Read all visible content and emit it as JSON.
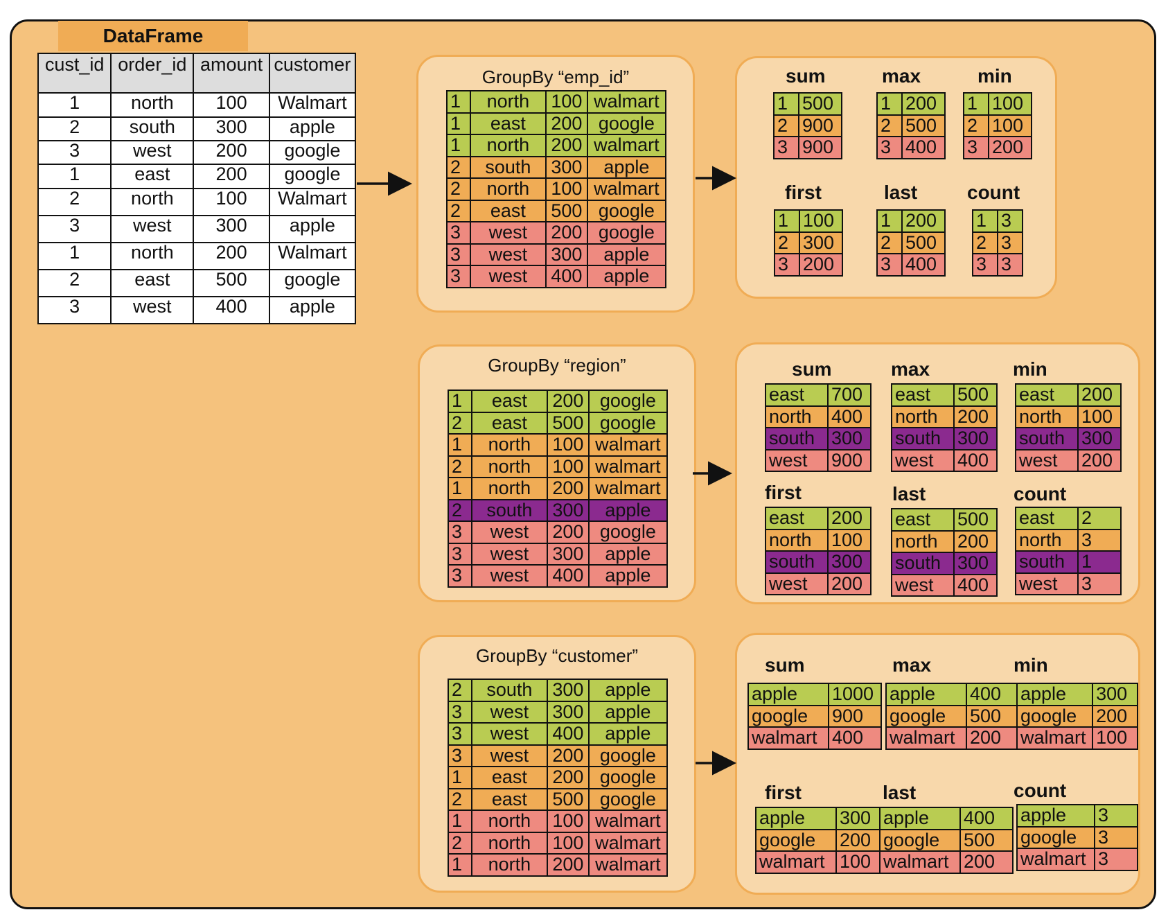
{
  "colors": {
    "canvas_fill": "#f5c27d",
    "panel_fill": "#f8d8ab",
    "header_tab": "#f0ac55",
    "group_green": "#b9cc52",
    "group_orange": "#f0ac55",
    "group_red": "#ee8a80",
    "group_purple": "#8b2a8f"
  },
  "dataframe": {
    "title": "DataFrame",
    "columns": [
      "cust_id",
      "order_id",
      "amount",
      "customer"
    ],
    "rows": [
      [
        "1",
        "north",
        "100",
        "Walmart"
      ],
      [
        "2",
        "south",
        "300",
        "apple"
      ],
      [
        "3",
        "west",
        "200",
        "google"
      ],
      [
        "1",
        "east",
        "200",
        "google"
      ],
      [
        "2",
        "north",
        "100",
        "Walmart"
      ],
      [
        "3",
        "west",
        "300",
        "apple"
      ],
      [
        "1",
        "north",
        "200",
        "Walmart"
      ],
      [
        "2",
        "east",
        "500",
        "google"
      ],
      [
        "3",
        "west",
        "400",
        "apple"
      ]
    ]
  },
  "groupbys": [
    {
      "title": "GroupBy “emp_id”",
      "rows": [
        {
          "c": "g",
          "v": [
            "1",
            "north",
            "100",
            "walmart"
          ]
        },
        {
          "c": "g",
          "v": [
            "1",
            "east",
            "200",
            "google"
          ]
        },
        {
          "c": "g",
          "v": [
            "1",
            "north",
            "200",
            "walmart"
          ]
        },
        {
          "c": "o",
          "v": [
            "2",
            "south",
            "300",
            "apple"
          ]
        },
        {
          "c": "o",
          "v": [
            "2",
            "north",
            "100",
            "walmart"
          ]
        },
        {
          "c": "o",
          "v": [
            "2",
            "east",
            "500",
            "google"
          ]
        },
        {
          "c": "r",
          "v": [
            "3",
            "west",
            "200",
            "google"
          ]
        },
        {
          "c": "r",
          "v": [
            "3",
            "west",
            "300",
            "apple"
          ]
        },
        {
          "c": "r",
          "v": [
            "3",
            "west",
            "400",
            "apple"
          ]
        }
      ],
      "aggs": [
        {
          "name": "sum",
          "rows": [
            [
              "1",
              "500"
            ],
            [
              "2",
              "900"
            ],
            [
              "3",
              "900"
            ]
          ]
        },
        {
          "name": "max",
          "rows": [
            [
              "1",
              "200"
            ],
            [
              "2",
              "500"
            ],
            [
              "3",
              "400"
            ]
          ]
        },
        {
          "name": "min",
          "rows": [
            [
              "1",
              "100"
            ],
            [
              "2",
              "100"
            ],
            [
              "3",
              "200"
            ]
          ]
        },
        {
          "name": "first",
          "rows": [
            [
              "1",
              "100"
            ],
            [
              "2",
              "300"
            ],
            [
              "3",
              "200"
            ]
          ]
        },
        {
          "name": "last",
          "rows": [
            [
              "1",
              "200"
            ],
            [
              "2",
              "500"
            ],
            [
              "3",
              "400"
            ]
          ]
        },
        {
          "name": "count",
          "rows": [
            [
              "1",
              "3"
            ],
            [
              "2",
              "3"
            ],
            [
              "3",
              "3"
            ]
          ]
        }
      ]
    },
    {
      "title": "GroupBy “region”",
      "rows": [
        {
          "c": "g",
          "v": [
            "1",
            "east",
            "200",
            "google"
          ]
        },
        {
          "c": "g",
          "v": [
            "2",
            "east",
            "500",
            "google"
          ]
        },
        {
          "c": "o",
          "v": [
            "1",
            "north",
            "100",
            "walmart"
          ]
        },
        {
          "c": "o",
          "v": [
            "2",
            "north",
            "100",
            "walmart"
          ]
        },
        {
          "c": "o",
          "v": [
            "1",
            "north",
            "200",
            "walmart"
          ]
        },
        {
          "c": "p",
          "v": [
            "2",
            "south",
            "300",
            "apple"
          ]
        },
        {
          "c": "r",
          "v": [
            "3",
            "west",
            "200",
            "google"
          ]
        },
        {
          "c": "r",
          "v": [
            "3",
            "west",
            "300",
            "apple"
          ]
        },
        {
          "c": "r",
          "v": [
            "3",
            "west",
            "400",
            "apple"
          ]
        }
      ],
      "aggs": [
        {
          "name": "sum",
          "rows": [
            [
              "east",
              "700"
            ],
            [
              "north",
              "400"
            ],
            [
              "south",
              "300"
            ],
            [
              "west",
              "900"
            ]
          ]
        },
        {
          "name": "max",
          "rows": [
            [
              "east",
              "500"
            ],
            [
              "north",
              "200"
            ],
            [
              "south",
              "300"
            ],
            [
              "west",
              "400"
            ]
          ]
        },
        {
          "name": "min",
          "rows": [
            [
              "east",
              "200"
            ],
            [
              "north",
              "100"
            ],
            [
              "south",
              "300"
            ],
            [
              "west",
              "200"
            ]
          ]
        },
        {
          "name": "first",
          "rows": [
            [
              "east",
              "200"
            ],
            [
              "north",
              "100"
            ],
            [
              "south",
              "300"
            ],
            [
              "west",
              "200"
            ]
          ]
        },
        {
          "name": "last",
          "rows": [
            [
              "east",
              "500"
            ],
            [
              "north",
              "200"
            ],
            [
              "south",
              "300"
            ],
            [
              "west",
              "400"
            ]
          ]
        },
        {
          "name": "count",
          "rows": [
            [
              "east",
              "2"
            ],
            [
              "north",
              "3"
            ],
            [
              "south",
              "1"
            ],
            [
              "west",
              "3"
            ]
          ]
        }
      ]
    },
    {
      "title": "GroupBy “customer”",
      "rows": [
        {
          "c": "g",
          "v": [
            "2",
            "south",
            "300",
            "apple"
          ]
        },
        {
          "c": "g",
          "v": [
            "3",
            "west",
            "300",
            "apple"
          ]
        },
        {
          "c": "g",
          "v": [
            "3",
            "west",
            "400",
            "apple"
          ]
        },
        {
          "c": "o",
          "v": [
            "3",
            "west",
            "200",
            "google"
          ]
        },
        {
          "c": "o",
          "v": [
            "1",
            "east",
            "200",
            "google"
          ]
        },
        {
          "c": "o",
          "v": [
            "2",
            "east",
            "500",
            "google"
          ]
        },
        {
          "c": "r",
          "v": [
            "1",
            "north",
            "100",
            "walmart"
          ]
        },
        {
          "c": "r",
          "v": [
            "2",
            "north",
            "100",
            "walmart"
          ]
        },
        {
          "c": "r",
          "v": [
            "1",
            "north",
            "200",
            "walmart"
          ]
        }
      ],
      "aggs": [
        {
          "name": "sum",
          "rows": [
            [
              "apple",
              "1000"
            ],
            [
              "google",
              "900"
            ],
            [
              "walmart",
              "400"
            ]
          ]
        },
        {
          "name": "max",
          "rows": [
            [
              "apple",
              "400"
            ],
            [
              "google",
              "500"
            ],
            [
              "walmart",
              "200"
            ]
          ]
        },
        {
          "name": "min",
          "rows": [
            [
              "apple",
              "300"
            ],
            [
              "google",
              "200"
            ],
            [
              "walmart",
              "100"
            ]
          ]
        },
        {
          "name": "first",
          "rows": [
            [
              "apple",
              "300"
            ],
            [
              "google",
              "200"
            ],
            [
              "walmart",
              "100"
            ]
          ]
        },
        {
          "name": "last",
          "rows": [
            [
              "apple",
              "400"
            ],
            [
              "google",
              "500"
            ],
            [
              "walmart",
              "200"
            ]
          ]
        },
        {
          "name": "count",
          "rows": [
            [
              "apple",
              "3"
            ],
            [
              "google",
              "3"
            ],
            [
              "walmart",
              "3"
            ]
          ]
        }
      ]
    }
  ]
}
